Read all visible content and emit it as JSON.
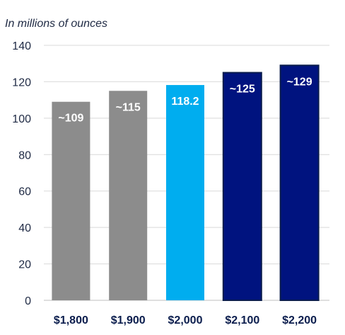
{
  "chart_data": {
    "type": "bar",
    "title": "",
    "unit_label": "In millions of ounces",
    "xlabel": "",
    "ylabel": "",
    "categories": [
      "$1,800",
      "$1,900",
      "$2,000",
      "$2,100",
      "$2,200"
    ],
    "values": [
      109,
      115,
      118.2,
      125,
      129
    ],
    "data_labels": [
      "~109",
      "~115",
      "118.2",
      "~125",
      "~129"
    ],
    "bar_colors": [
      "#8c8c8c",
      "#8c8c8c",
      "#00adef",
      "#00137f",
      "#00137f"
    ],
    "bar_outline_color": "#0b1d4d",
    "highlight_index": 2,
    "ylim": [
      0,
      140
    ],
    "yticks": [
      0,
      20,
      40,
      60,
      80,
      100,
      120,
      140
    ],
    "grid": true,
    "legend": "none"
  }
}
